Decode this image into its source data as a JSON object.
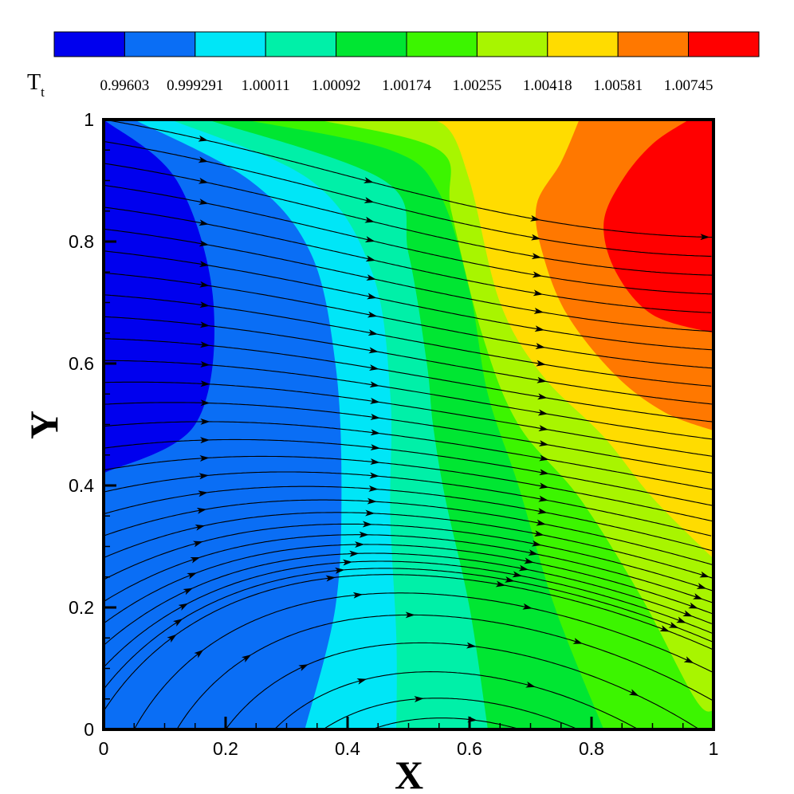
{
  "chart_data": {
    "type": "heatmap",
    "title": "",
    "xlabel": "X",
    "ylabel": "Y",
    "xlim": [
      0,
      1
    ],
    "ylim": [
      0,
      1
    ],
    "x_ticks": [
      "0",
      "0.2",
      "0.4",
      "0.6",
      "0.8",
      "1"
    ],
    "y_ticks": [
      "0",
      "0.2",
      "0.4",
      "0.6",
      "0.8",
      "1"
    ],
    "grid": false,
    "legend": {
      "title_main": "T",
      "title_sub": "t",
      "placement": "top",
      "levels": [
        "0.99603",
        "0.999291",
        "1.00011",
        "1.00092",
        "1.00174",
        "1.00255",
        "1.00418",
        "1.00581",
        "1.00745"
      ],
      "colors": [
        "#0000ee",
        "#0a6ef5",
        "#00e6f7",
        "#00f0a8",
        "#00e632",
        "#3cf500",
        "#a8f500",
        "#ffdc00",
        "#ff7800",
        "#ff0000"
      ]
    },
    "regions": [
      {
        "level": 0,
        "boundary": [
          [
            0,
            1
          ],
          [
            0.12,
            0.9
          ],
          [
            0.18,
            0.7
          ],
          [
            0.15,
            0.5
          ],
          [
            0,
            0.42
          ]
        ]
      },
      {
        "level": 2,
        "boundary": [
          [
            0.05,
            1
          ],
          [
            0.24,
            0.9
          ],
          [
            0.34,
            0.78
          ],
          [
            0.38,
            0.6
          ],
          [
            0.39,
            0.4
          ],
          [
            0.38,
            0.2
          ],
          [
            0.33,
            0
          ]
        ]
      },
      {
        "level": 3,
        "boundary": [
          [
            0.11,
            1
          ],
          [
            0.34,
            0.9
          ],
          [
            0.44,
            0.75
          ],
          [
            0.47,
            0.55
          ],
          [
            0.47,
            0.35
          ],
          [
            0.48,
            0.15
          ],
          [
            0.48,
            0
          ]
        ]
      },
      {
        "level": 4,
        "boundary": [
          [
            0.17,
            1
          ],
          [
            0.46,
            0.9
          ],
          [
            0.5,
            0.78
          ],
          [
            0.53,
            0.6
          ],
          [
            0.54,
            0.5
          ],
          [
            0.56,
            0.38
          ],
          [
            0.6,
            0.2
          ],
          [
            0.63,
            0
          ]
        ]
      },
      {
        "level": 5,
        "boundary": [
          [
            0.23,
            1
          ],
          [
            0.47,
            0.95
          ],
          [
            0.55,
            0.88
          ],
          [
            0.6,
            0.72
          ],
          [
            0.63,
            0.55
          ],
          [
            0.68,
            0.4
          ],
          [
            0.74,
            0.2
          ],
          [
            0.82,
            0
          ]
        ]
      },
      {
        "level": 6,
        "boundary": [
          [
            0.35,
            1
          ],
          [
            0.55,
            0.95
          ],
          [
            0.57,
            0.85
          ],
          [
            0.62,
            0.65
          ],
          [
            0.68,
            0.5
          ],
          [
            0.78,
            0.38
          ],
          [
            0.88,
            0.22
          ],
          [
            0.97,
            0.05
          ],
          [
            1,
            0.03
          ]
        ]
      },
      {
        "level": 7,
        "boundary": [
          [
            0.49,
            1
          ],
          [
            0.56,
            0.99
          ],
          [
            0.6,
            0.9
          ],
          [
            0.65,
            0.7
          ],
          [
            0.72,
            0.58
          ],
          [
            0.82,
            0.48
          ],
          [
            0.9,
            0.38
          ],
          [
            1,
            0.28
          ]
        ]
      },
      {
        "level": 8,
        "boundary": [
          [
            0.78,
            1
          ],
          [
            0.75,
            0.93
          ],
          [
            0.71,
            0.86
          ],
          [
            0.72,
            0.78
          ],
          [
            0.76,
            0.68
          ],
          [
            0.84,
            0.58
          ],
          [
            0.92,
            0.52
          ],
          [
            1,
            0.49
          ]
        ]
      },
      {
        "level": 9,
        "boundary": [
          [
            0.96,
            1
          ],
          [
            0.9,
            0.96
          ],
          [
            0.85,
            0.9
          ],
          [
            0.82,
            0.83
          ],
          [
            0.84,
            0.75
          ],
          [
            0.9,
            0.68
          ],
          [
            1,
            0.65
          ]
        ]
      }
    ],
    "streamline_count": 28
  }
}
